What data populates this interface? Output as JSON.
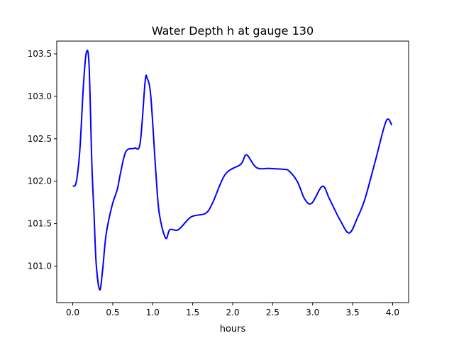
{
  "chart_data": {
    "type": "line",
    "title": "Water Depth h at gauge 130",
    "xlabel": "hours",
    "ylabel": "",
    "xlim": [
      -0.2,
      4.2
    ],
    "ylim": [
      100.57,
      103.65
    ],
    "xticks": [
      0.0,
      0.5,
      1.0,
      1.5,
      2.0,
      2.5,
      3.0,
      3.5,
      4.0
    ],
    "xtick_labels": [
      "0.0",
      "0.5",
      "1.0",
      "1.5",
      "2.0",
      "2.5",
      "3.0",
      "3.5",
      "4.0"
    ],
    "yticks": [
      101.0,
      101.5,
      102.0,
      102.5,
      103.0,
      103.5
    ],
    "ytick_labels": [
      "101.0",
      "101.5",
      "102.0",
      "102.5",
      "103.0",
      "103.5"
    ],
    "grid": false,
    "series": [
      {
        "name": "h",
        "color": "#0000ff",
        "x": [
          0.0,
          0.044,
          0.089,
          0.133,
          0.169,
          0.204,
          0.239,
          0.266,
          0.293,
          0.337,
          0.373,
          0.417,
          0.488,
          0.559,
          0.594,
          0.665,
          0.772,
          0.843,
          0.905,
          0.931,
          0.976,
          1.038,
          1.082,
          1.162,
          1.215,
          1.322,
          1.481,
          1.659,
          1.747,
          1.907,
          2.102,
          2.173,
          2.297,
          2.457,
          2.634,
          2.705,
          2.812,
          2.9,
          2.989,
          3.122,
          3.211,
          3.344,
          3.459,
          3.565,
          3.654,
          3.787,
          3.92,
          3.991
        ],
        "y": [
          101.94,
          101.99,
          102.37,
          103.12,
          103.51,
          103.37,
          102.2,
          101.62,
          101.03,
          100.72,
          100.95,
          101.37,
          101.7,
          101.91,
          102.08,
          102.35,
          102.39,
          102.45,
          103.17,
          103.21,
          103.0,
          102.12,
          101.62,
          101.33,
          101.43,
          101.43,
          101.58,
          101.62,
          101.74,
          102.08,
          102.2,
          102.31,
          102.16,
          102.15,
          102.14,
          102.12,
          101.99,
          101.79,
          101.74,
          101.94,
          101.79,
          101.54,
          101.39,
          101.58,
          101.79,
          102.25,
          102.71,
          102.66
        ]
      }
    ]
  }
}
